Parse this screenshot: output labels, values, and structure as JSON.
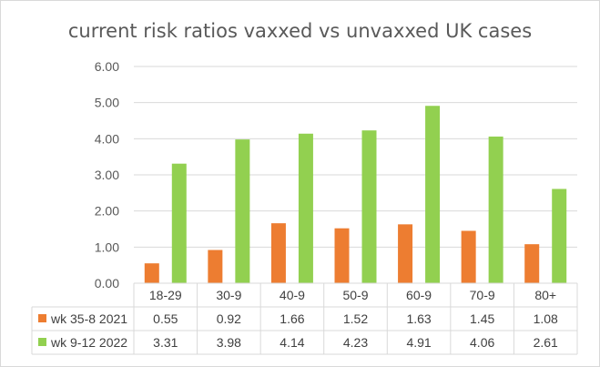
{
  "chart_data": {
    "type": "bar",
    "title": "current risk ratios vaxxed vs unvaxxed UK cases",
    "xlabel": "",
    "ylabel": "",
    "ylim": [
      0,
      6
    ],
    "yticks": [
      "0.00",
      "1.00",
      "2.00",
      "3.00",
      "4.00",
      "5.00",
      "6.00"
    ],
    "grid": true,
    "legend": "data-table",
    "categories": [
      "18-29",
      "30-9",
      "40-9",
      "50-9",
      "60-9",
      "70-9",
      "80+"
    ],
    "series": [
      {
        "name": "wk 35-8 2021",
        "color": "#ed7d31",
        "values": [
          0.55,
          0.92,
          1.66,
          1.52,
          1.63,
          1.45,
          1.08
        ],
        "labels": [
          "0.55",
          "0.92",
          "1.66",
          "1.52",
          "1.63",
          "1.45",
          "1.08"
        ]
      },
      {
        "name": "wk 9-12 2022",
        "color": "#92d050",
        "values": [
          3.31,
          3.98,
          4.14,
          4.23,
          4.91,
          4.06,
          2.61
        ],
        "labels": [
          "3.31",
          "3.98",
          "4.14",
          "4.23",
          "4.91",
          "4.06",
          "2.61"
        ]
      }
    ]
  }
}
